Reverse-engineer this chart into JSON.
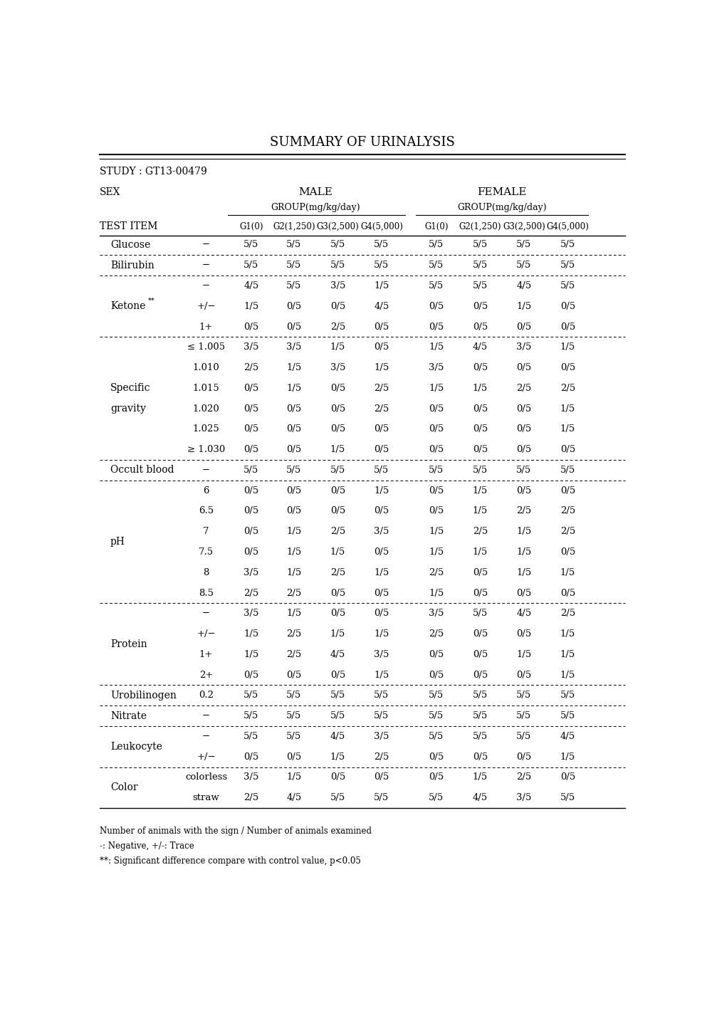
{
  "title": "SUMMARY OF URINALYSIS",
  "study": "STUDY : GT13-00479",
  "sex_label": "SEX",
  "male_label": "MALE",
  "female_label": "FEMALE",
  "group_label": "GROUP(mg/kg/day)",
  "test_item_label": "TEST ITEM",
  "col_headers": [
    "G1(0)",
    "G2(1,250)",
    "G3(2,500)",
    "G4(5,000)",
    "G1(0)",
    "G2(1,250)",
    "G3(2,500)",
    "G4(5,000)"
  ],
  "footnotes": [
    "Number of animals with the sign / Number of animals examined",
    "-: Negative, +/-: Trace",
    "**: Significant difference compare with control value, p<0.05"
  ],
  "rows": [
    {
      "item": "Glucose",
      "sub": "−",
      "male": [
        "5/5",
        "5/5",
        "5/5",
        "5/5"
      ],
      "female": [
        "5/5",
        "5/5",
        "5/5",
        "5/5"
      ],
      "separator": "dotted",
      "item_span": 1
    },
    {
      "item": "Bilirubin",
      "sub": "−",
      "male": [
        "5/5",
        "5/5",
        "5/5",
        "5/5"
      ],
      "female": [
        "5/5",
        "5/5",
        "5/5",
        "5/5"
      ],
      "separator": "dotted",
      "item_span": 1
    },
    {
      "item": "Ketone **",
      "sub": "−",
      "male": [
        "4/5",
        "5/5",
        "3/5",
        "1/5"
      ],
      "female": [
        "5/5",
        "5/5",
        "4/5",
        "5/5"
      ],
      "separator": "none",
      "item_span": 3
    },
    {
      "item": "",
      "sub": "+/−",
      "male": [
        "1/5",
        "0/5",
        "0/5",
        "4/5"
      ],
      "female": [
        "0/5",
        "0/5",
        "1/5",
        "0/5"
      ],
      "separator": "none",
      "item_span": 0
    },
    {
      "item": "",
      "sub": "1+",
      "male": [
        "0/5",
        "0/5",
        "2/5",
        "0/5"
      ],
      "female": [
        "0/5",
        "0/5",
        "0/5",
        "0/5"
      ],
      "separator": "dotted",
      "item_span": 0
    },
    {
      "item": "Specific",
      "sub": "≤ 1.005",
      "male": [
        "3/5",
        "3/5",
        "1/5",
        "0/5"
      ],
      "female": [
        "1/5",
        "4/5",
        "3/5",
        "1/5"
      ],
      "separator": "none",
      "item_span": 6
    },
    {
      "item": "gravity",
      "sub": "1.010",
      "male": [
        "2/5",
        "1/5",
        "3/5",
        "1/5"
      ],
      "female": [
        "3/5",
        "0/5",
        "0/5",
        "0/5"
      ],
      "separator": "none",
      "item_span": 0
    },
    {
      "item": "",
      "sub": "1.015",
      "male": [
        "0/5",
        "1/5",
        "0/5",
        "2/5"
      ],
      "female": [
        "1/5",
        "1/5",
        "2/5",
        "2/5"
      ],
      "separator": "none",
      "item_span": 0
    },
    {
      "item": "",
      "sub": "1.020",
      "male": [
        "0/5",
        "0/5",
        "0/5",
        "2/5"
      ],
      "female": [
        "0/5",
        "0/5",
        "0/5",
        "1/5"
      ],
      "separator": "none",
      "item_span": 0
    },
    {
      "item": "",
      "sub": "1.025",
      "male": [
        "0/5",
        "0/5",
        "0/5",
        "0/5"
      ],
      "female": [
        "0/5",
        "0/5",
        "0/5",
        "1/5"
      ],
      "separator": "none",
      "item_span": 0
    },
    {
      "item": "",
      "sub": "≥ 1.030",
      "male": [
        "0/5",
        "0/5",
        "1/5",
        "0/5"
      ],
      "female": [
        "0/5",
        "0/5",
        "0/5",
        "0/5"
      ],
      "separator": "dotted",
      "item_span": 0
    },
    {
      "item": "Occult blood",
      "sub": "−",
      "male": [
        "5/5",
        "5/5",
        "5/5",
        "5/5"
      ],
      "female": [
        "5/5",
        "5/5",
        "5/5",
        "5/5"
      ],
      "separator": "dotted",
      "item_span": 1
    },
    {
      "item": "pH",
      "sub": "6",
      "male": [
        "0/5",
        "0/5",
        "0/5",
        "1/5"
      ],
      "female": [
        "0/5",
        "1/5",
        "0/5",
        "0/5"
      ],
      "separator": "none",
      "item_span": 6
    },
    {
      "item": "",
      "sub": "6.5",
      "male": [
        "0/5",
        "0/5",
        "0/5",
        "0/5"
      ],
      "female": [
        "0/5",
        "1/5",
        "2/5",
        "2/5"
      ],
      "separator": "none",
      "item_span": 0
    },
    {
      "item": "",
      "sub": "7",
      "male": [
        "0/5",
        "1/5",
        "2/5",
        "3/5"
      ],
      "female": [
        "1/5",
        "2/5",
        "1/5",
        "2/5"
      ],
      "separator": "none",
      "item_span": 0
    },
    {
      "item": "",
      "sub": "7.5",
      "male": [
        "0/5",
        "1/5",
        "1/5",
        "0/5"
      ],
      "female": [
        "1/5",
        "1/5",
        "1/5",
        "0/5"
      ],
      "separator": "none",
      "item_span": 0
    },
    {
      "item": "",
      "sub": "8",
      "male": [
        "3/5",
        "1/5",
        "2/5",
        "1/5"
      ],
      "female": [
        "2/5",
        "0/5",
        "1/5",
        "1/5"
      ],
      "separator": "none",
      "item_span": 0
    },
    {
      "item": "",
      "sub": "8.5",
      "male": [
        "2/5",
        "2/5",
        "0/5",
        "0/5"
      ],
      "female": [
        "1/5",
        "0/5",
        "0/5",
        "0/5"
      ],
      "separator": "dotted",
      "item_span": 0
    },
    {
      "item": "Protein",
      "sub": "−",
      "male": [
        "3/5",
        "1/5",
        "0/5",
        "0/5"
      ],
      "female": [
        "3/5",
        "5/5",
        "4/5",
        "2/5"
      ],
      "separator": "none",
      "item_span": 4
    },
    {
      "item": "",
      "sub": "+/−",
      "male": [
        "1/5",
        "2/5",
        "1/5",
        "1/5"
      ],
      "female": [
        "2/5",
        "0/5",
        "0/5",
        "1/5"
      ],
      "separator": "none",
      "item_span": 0
    },
    {
      "item": "",
      "sub": "1+",
      "male": [
        "1/5",
        "2/5",
        "4/5",
        "3/5"
      ],
      "female": [
        "0/5",
        "0/5",
        "1/5",
        "1/5"
      ],
      "separator": "none",
      "item_span": 0
    },
    {
      "item": "",
      "sub": "2+",
      "male": [
        "0/5",
        "0/5",
        "0/5",
        "1/5"
      ],
      "female": [
        "0/5",
        "0/5",
        "0/5",
        "1/5"
      ],
      "separator": "dotted",
      "item_span": 0
    },
    {
      "item": "Urobilinogen",
      "sub": "0.2",
      "male": [
        "5/5",
        "5/5",
        "5/5",
        "5/5"
      ],
      "female": [
        "5/5",
        "5/5",
        "5/5",
        "5/5"
      ],
      "separator": "dotted",
      "item_span": 1
    },
    {
      "item": "Nitrate",
      "sub": "−",
      "male": [
        "5/5",
        "5/5",
        "5/5",
        "5/5"
      ],
      "female": [
        "5/5",
        "5/5",
        "5/5",
        "5/5"
      ],
      "separator": "dotted",
      "item_span": 1
    },
    {
      "item": "Leukocyte",
      "sub": "−",
      "male": [
        "5/5",
        "5/5",
        "4/5",
        "3/5"
      ],
      "female": [
        "5/5",
        "5/5",
        "5/5",
        "4/5"
      ],
      "separator": "none",
      "item_span": 2
    },
    {
      "item": "",
      "sub": "+/−",
      "male": [
        "0/5",
        "0/5",
        "1/5",
        "2/5"
      ],
      "female": [
        "0/5",
        "0/5",
        "0/5",
        "1/5"
      ],
      "separator": "dotted",
      "item_span": 0
    },
    {
      "item": "Color",
      "sub": "colorless",
      "male": [
        "3/5",
        "1/5",
        "0/5",
        "0/5"
      ],
      "female": [
        "0/5",
        "1/5",
        "2/5",
        "0/5"
      ],
      "separator": "none",
      "item_span": 2
    },
    {
      "item": "",
      "sub": "straw",
      "male": [
        "2/5",
        "4/5",
        "5/5",
        "5/5"
      ],
      "female": [
        "5/5",
        "4/5",
        "3/5",
        "5/5"
      ],
      "separator": "solid",
      "item_span": 0
    }
  ]
}
